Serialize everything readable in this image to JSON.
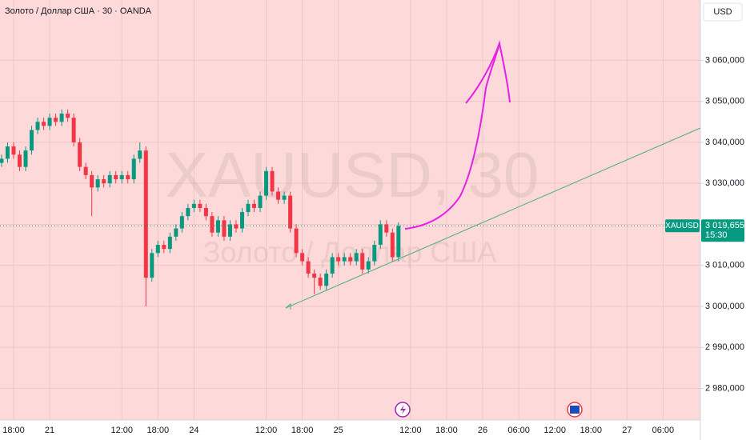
{
  "chart_data": {
    "type": "candlestick",
    "title": "Золото / Доллар США · 30 · OANDA",
    "watermark": "XAUUSD, 30",
    "watermark_subtitle": "Золото / Доллар США",
    "currency": "USD",
    "symbol": "XAUUSD",
    "countdown": "15:30",
    "last_price": {
      "value": 3019.655,
      "label": "3 019,655"
    },
    "up_color": "#089981",
    "down_color": "#f23645",
    "x": [
      -2,
      -1,
      0,
      1,
      2,
      3,
      4,
      5,
      6,
      7,
      8,
      9,
      10,
      11,
      12,
      13,
      14,
      15,
      16,
      17,
      18,
      19,
      20,
      21,
      22,
      23,
      24,
      25,
      26,
      27,
      28,
      29,
      30,
      31,
      32,
      33,
      34,
      35,
      36,
      37,
      38,
      39,
      40,
      41,
      42,
      43,
      44,
      45,
      46,
      47,
      48,
      49,
      50,
      51,
      52,
      53,
      54,
      55,
      56,
      57,
      58,
      59,
      60,
      61,
      62,
      63,
      64
    ],
    "open": [
      3035,
      3036,
      3039,
      3037,
      3034,
      3038,
      3043,
      3045,
      3044,
      3046,
      3045,
      3047,
      3046,
      3040,
      3034,
      3032,
      3029,
      3031,
      3030,
      3032,
      3031,
      3032,
      3031,
      3036,
      3038,
      3007,
      3013,
      3015,
      3014,
      3017,
      3019,
      3022,
      3024,
      3025,
      3024,
      3022,
      3018,
      3021,
      3017,
      3020,
      3019,
      3023,
      3025,
      3024,
      3027,
      3033,
      3028,
      3026,
      3027,
      3019,
      3013,
      3011,
      3008,
      3007,
      3005,
      3008,
      3012,
      3011,
      3012,
      3011,
      3013,
      3009,
      3011,
      3015,
      3020,
      3018,
      3012
    ],
    "high": [
      3037,
      3040,
      3040,
      3038,
      3039,
      3044,
      3046,
      3046,
      3047,
      3047,
      3048,
      3048,
      3047,
      3041,
      3035,
      3033,
      3032,
      3032,
      3033,
      3033,
      3033,
      3033,
      3037,
      3040,
      3039,
      3014,
      3016,
      3016,
      3018,
      3020,
      3023,
      3025,
      3026,
      3026,
      3025,
      3023,
      3022,
      3022,
      3021,
      3021,
      3024,
      3026,
      3026,
      3028,
      3034,
      3034,
      3029,
      3028,
      3028,
      3020,
      3014,
      3012,
      3009,
      3008,
      3009,
      3013,
      3013,
      3013,
      3013,
      3014,
      3014,
      3012,
      3016,
      3021,
      3021,
      3019,
      3020.5
    ],
    "low": [
      3034,
      3035,
      3036,
      3033,
      3033,
      3037,
      3042,
      3043,
      3043,
      3044,
      3044,
      3045,
      3039,
      3033,
      3031,
      3022,
      3028,
      3029,
      3029,
      3030,
      3030,
      3030,
      3030,
      3035,
      3000,
      3006,
      3012,
      3013,
      3013,
      3016,
      3018,
      3021,
      3023,
      3023,
      3021,
      3017,
      3017,
      3016,
      3016,
      3018,
      3018,
      3022,
      3023,
      3023,
      3026,
      3027,
      3025,
      3025,
      3018,
      3012,
      3010,
      3007,
      3003,
      3004,
      3004,
      3007,
      3010,
      3010,
      3010,
      3010,
      3008,
      3008,
      3010,
      3014,
      3017,
      3011,
      3011
    ],
    "close": [
      3036,
      3039,
      3037,
      3034,
      3038,
      3043,
      3045,
      3044,
      3046,
      3045,
      3047,
      3046,
      3040,
      3034,
      3032,
      3029,
      3031,
      3030,
      3032,
      3031,
      3032,
      3031,
      3036,
      3038,
      3007,
      3013,
      3015,
      3014,
      3017,
      3019,
      3022,
      3024,
      3025,
      3024,
      3022,
      3018,
      3021,
      3017,
      3020,
      3019,
      3023,
      3025,
      3024,
      3027,
      3033,
      3028,
      3026,
      3027,
      3019,
      3013,
      3011,
      3008,
      3007,
      3005,
      3008,
      3012,
      3011,
      3012,
      3011,
      3013,
      3009,
      3011,
      3015,
      3020,
      3018,
      3012,
      3019.655
    ],
    "xlim": [
      -2.26,
      114.2
    ],
    "xticks": [
      {
        "value": 0,
        "label": "18:00"
      },
      {
        "value": 6,
        "label": "21"
      },
      {
        "value": 18,
        "label": "12:00"
      },
      {
        "value": 24,
        "label": "18:00"
      },
      {
        "value": 30,
        "label": "24"
      },
      {
        "value": 42,
        "label": "12:00"
      },
      {
        "value": 48,
        "label": "18:00"
      },
      {
        "value": 54,
        "label": "25"
      },
      {
        "value": 66,
        "label": "12:00"
      },
      {
        "value": 72,
        "label": "18:00"
      },
      {
        "value": 78,
        "label": "26"
      },
      {
        "value": 84,
        "label": "06:00"
      },
      {
        "value": 90,
        "label": "12:00"
      },
      {
        "value": 96,
        "label": "18:00"
      },
      {
        "value": 102,
        "label": "27"
      },
      {
        "value": 108,
        "label": "06:00"
      }
    ],
    "ylim": [
      2972.3,
      3074.7
    ],
    "yticks": [
      {
        "value": 2980,
        "label": "2 980,000"
      },
      {
        "value": 2990,
        "label": "2 990,000"
      },
      {
        "value": 3000,
        "label": "3 000,000"
      },
      {
        "value": 3010,
        "label": "3 010,000"
      },
      {
        "value": 3020,
        "label": "3 020,000"
      },
      {
        "value": 3030,
        "label": "3 030,000"
      },
      {
        "value": 3040,
        "label": "3 040,000"
      },
      {
        "value": 3050,
        "label": "3 050,000"
      },
      {
        "value": 3060,
        "label": "3 060,000"
      }
    ]
  }
}
